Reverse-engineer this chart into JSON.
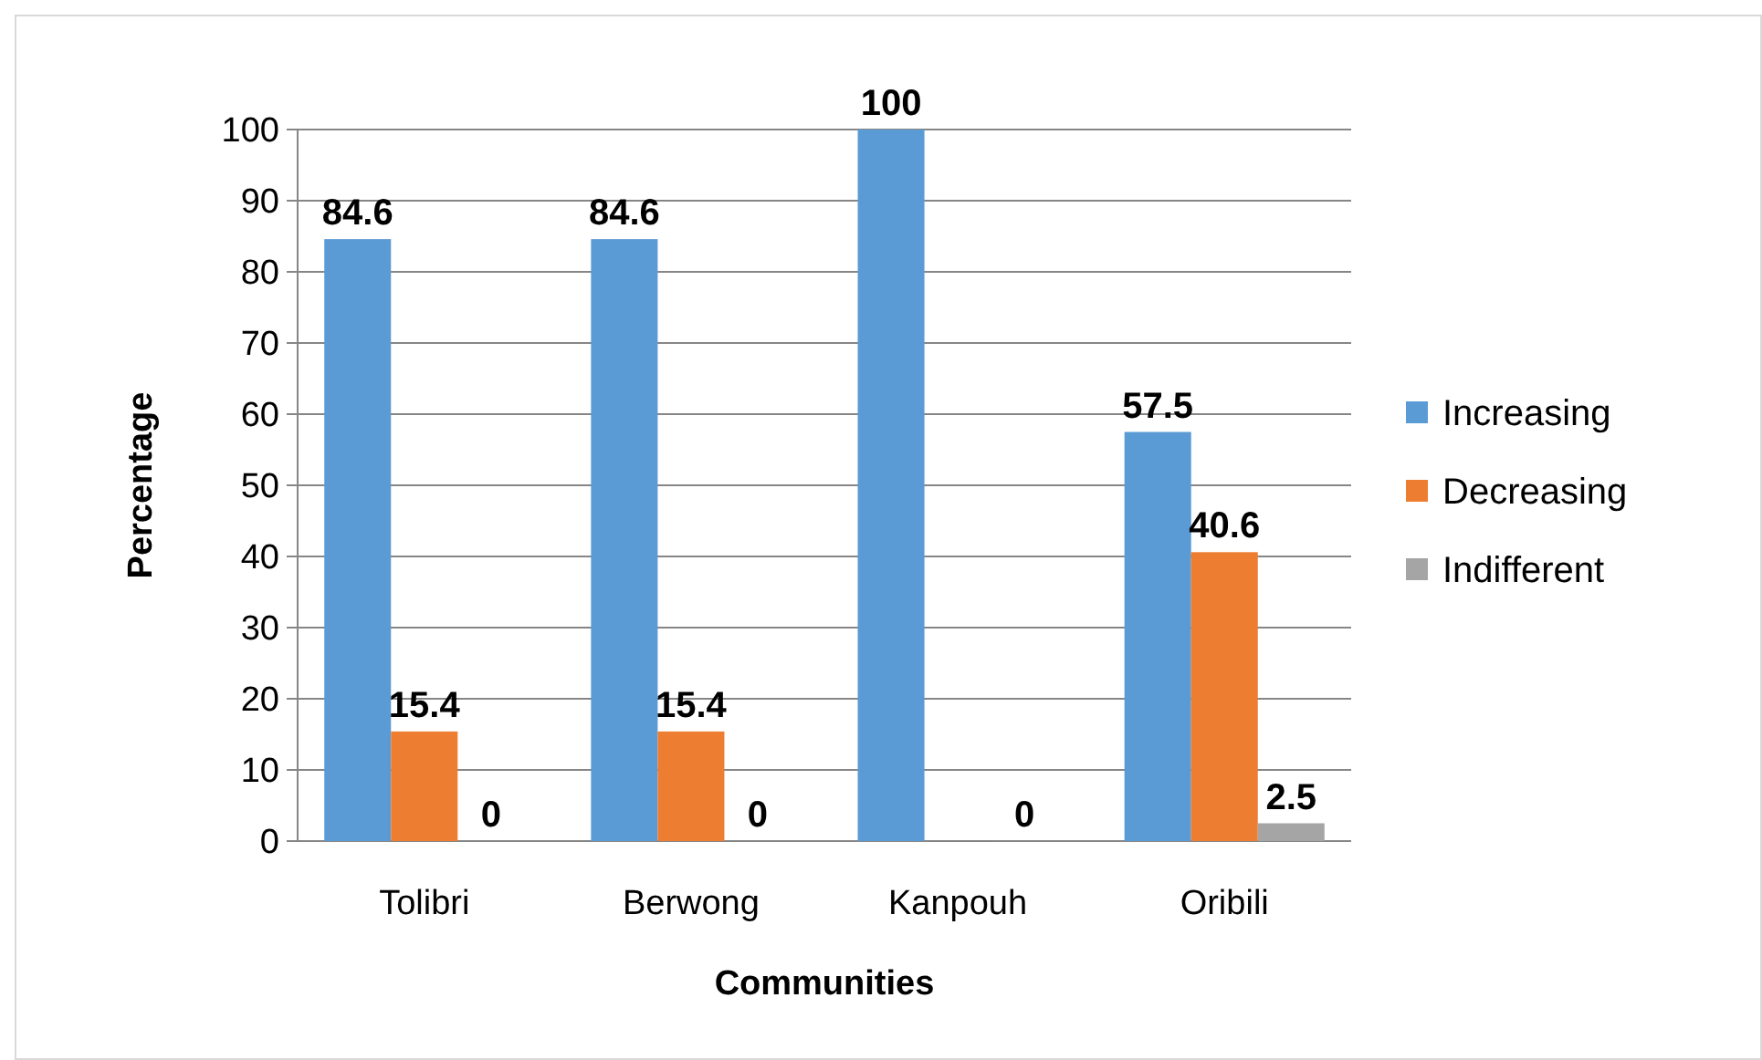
{
  "chart_data": {
    "type": "bar",
    "xlabel": "Communities",
    "ylabel": "Percentage",
    "categories": [
      "Tolibri",
      "Berwong",
      "Kanpouh",
      "Oribili"
    ],
    "series": [
      {
        "name": "Increasing",
        "color": "#5b9bd5",
        "values": [
          84.6,
          84.6,
          100,
          57.5
        ],
        "value_labels": [
          "84.6",
          "84.6",
          "100",
          "57.5"
        ]
      },
      {
        "name": "Decreasing",
        "color": "#ed7d31",
        "values": [
          15.4,
          15.4,
          0,
          40.6
        ],
        "value_labels": [
          "15.4",
          "15.4",
          null,
          "40.6"
        ]
      },
      {
        "name": "Indifferent",
        "color": "#a5a5a5",
        "values": [
          0,
          0,
          0,
          2.5
        ],
        "value_labels": [
          "0",
          "0",
          "0",
          "2.5"
        ]
      }
    ],
    "ylim": [
      0,
      100
    ],
    "yticks": [
      0,
      10,
      20,
      30,
      40,
      50,
      60,
      70,
      80,
      90,
      100
    ],
    "grid": "y",
    "legend": "right"
  }
}
